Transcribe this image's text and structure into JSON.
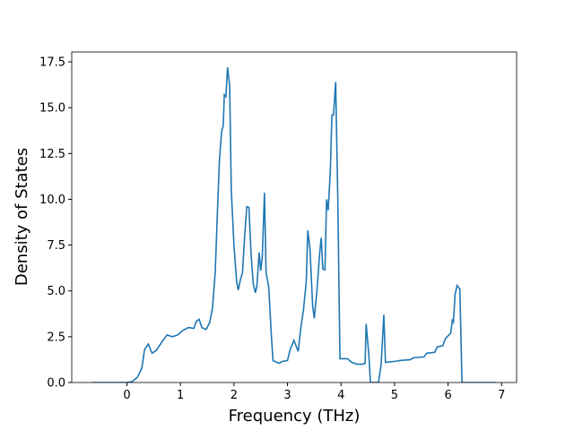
{
  "chart_data": {
    "type": "line",
    "xlabel": "Frequency (THz)",
    "ylabel": "Density of States",
    "xlim": [
      -1.03,
      7.28
    ],
    "ylim": [
      0,
      18.04
    ],
    "xticks": [
      0,
      1,
      2,
      3,
      4,
      5,
      6,
      7
    ],
    "yticks": [
      {
        "value": 0,
        "label": "0.0"
      },
      {
        "value": 2.5,
        "label": "2.5"
      },
      {
        "value": 5,
        "label": "5.0"
      },
      {
        "value": 7.5,
        "label": "7.5"
      },
      {
        "value": 10,
        "label": "10.0"
      },
      {
        "value": 12.5,
        "label": "12.5"
      },
      {
        "value": 15,
        "label": "15.0"
      },
      {
        "value": 17.5,
        "label": "17.5"
      }
    ],
    "color": "#1f77b4",
    "x": [
      -0.65,
      0,
      0.1,
      0.2,
      0.28,
      0.33,
      0.4,
      0.47,
      0.55,
      0.65,
      0.75,
      0.85,
      0.95,
      1.05,
      1.15,
      1.25,
      1.3,
      1.35,
      1.4,
      1.48,
      1.55,
      1.6,
      1.65,
      1.7,
      1.73,
      1.77,
      1.8,
      1.82,
      1.85,
      1.88,
      1.92,
      1.95,
      2.0,
      2.05,
      2.08,
      2.12,
      2.16,
      2.2,
      2.24,
      2.28,
      2.32,
      2.36,
      2.4,
      2.43,
      2.47,
      2.5,
      2.53,
      2.57,
      2.6,
      2.65,
      2.7,
      2.73,
      2.8,
      2.85,
      2.9,
      3.0,
      3.05,
      3.12,
      3.2,
      3.25,
      3.3,
      3.35,
      3.38,
      3.42,
      3.47,
      3.5,
      3.55,
      3.6,
      3.63,
      3.66,
      3.7,
      3.73,
      3.76,
      3.8,
      3.83,
      3.86,
      3.9,
      3.94,
      3.98,
      4.05,
      4.12,
      4.2,
      4.3,
      4.4,
      4.45,
      4.47,
      4.52,
      4.55,
      4.7,
      4.75,
      4.8,
      4.83,
      5.0,
      5.1,
      5.3,
      5.35,
      5.55,
      5.6,
      5.75,
      5.8,
      5.9,
      5.95,
      6.05,
      6.08,
      6.1,
      6.13,
      6.17,
      6.22,
      6.26,
      6.9
    ],
    "values": [
      0,
      0,
      0.05,
      0.3,
      0.8,
      1.8,
      2.1,
      1.6,
      1.75,
      2.2,
      2.6,
      2.5,
      2.6,
      2.85,
      3.0,
      2.95,
      3.35,
      3.45,
      3.0,
      2.9,
      3.3,
      4.1,
      6.0,
      10,
      12.2,
      13.7,
      14.0,
      15.7,
      15.6,
      17.2,
      16.2,
      10.5,
      7.5,
      5.5,
      5.05,
      5.6,
      6.0,
      8.0,
      9.6,
      9.55,
      7.0,
      5.4,
      4.9,
      5.3,
      7.1,
      6.1,
      6.9,
      10.35,
      6.0,
      5.2,
      2.5,
      1.2,
      1.1,
      1.05,
      1.15,
      1.2,
      1.8,
      2.3,
      1.7,
      3.0,
      4.0,
      5.5,
      8.3,
      7.3,
      4.2,
      3.5,
      5.0,
      7.0,
      7.9,
      6.2,
      6.15,
      10.0,
      9.4,
      11.5,
      14.6,
      14.6,
      16.4,
      10,
      1.3,
      1.3,
      1.3,
      1.1,
      1.0,
      1.0,
      1.05,
      3.2,
      1.5,
      0,
      0,
      1,
      3.7,
      1.1,
      1.15,
      1.2,
      1.25,
      1.35,
      1.4,
      1.6,
      1.65,
      1.95,
      2.0,
      2.4,
      2.7,
      3.4,
      3.3,
      4.8,
      5.3,
      5.1,
      0,
      0
    ]
  }
}
